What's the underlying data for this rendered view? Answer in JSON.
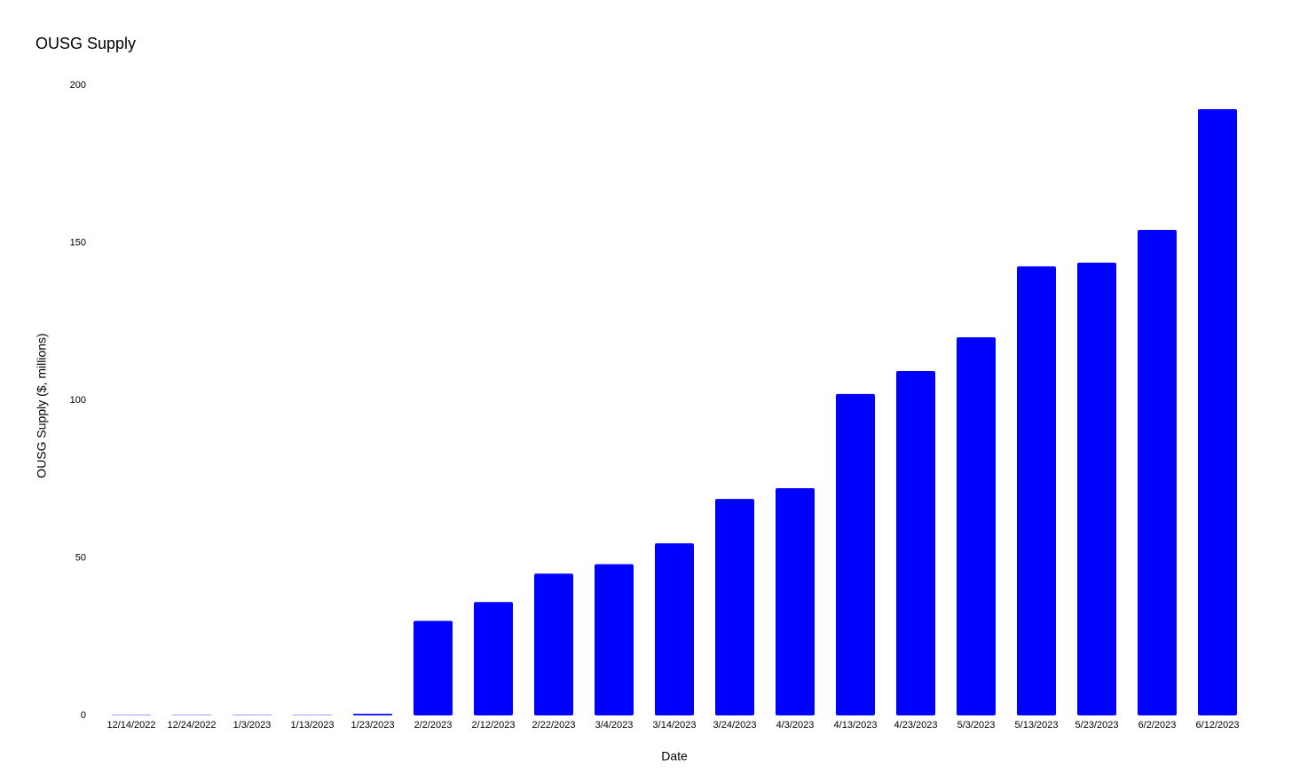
{
  "chart_data": {
    "type": "bar",
    "title": "OUSG Supply",
    "x_label": "Date",
    "y_label": "OUSG Supply ($, millions)",
    "categories": [
      "12/14/2022",
      "12/24/2022",
      "1/3/2023",
      "1/13/2023",
      "1/23/2023",
      "2/2/2023",
      "2/12/2023",
      "2/22/2023",
      "3/4/2023",
      "3/14/2023",
      "3/24/2023",
      "4/3/2023",
      "4/13/2023",
      "4/23/2023",
      "5/3/2023",
      "5/13/2023",
      "5/23/2023",
      "6/2/2023",
      "6/12/2023"
    ],
    "values": [
      0.1,
      0.1,
      0.1,
      0.1,
      0.5,
      30,
      36,
      45,
      48,
      54.6,
      68.7,
      72.1,
      102,
      109.3,
      120,
      142.5,
      143.7,
      154.1,
      192.4
    ],
    "color": "#0000ff",
    "ylim": [
      0,
      200
    ],
    "yticks": [
      0,
      50,
      100,
      150,
      200
    ],
    "grid": false
  }
}
